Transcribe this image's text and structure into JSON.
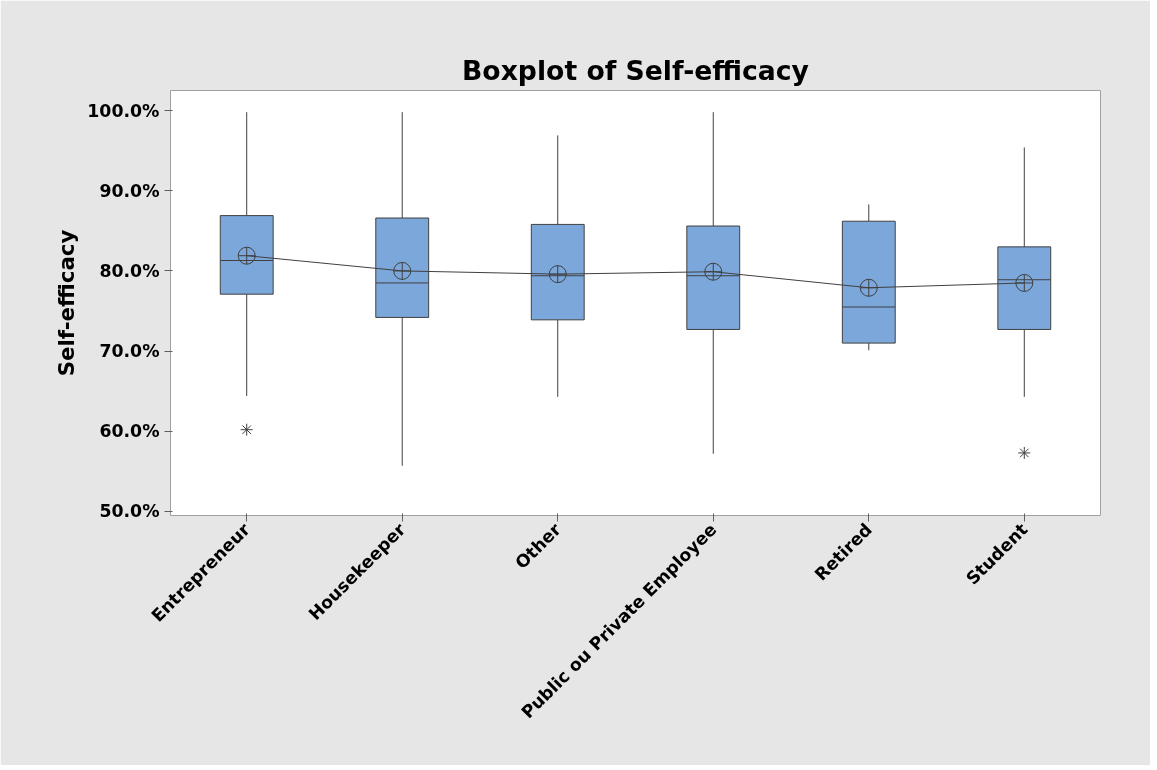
{
  "chart_data": {
    "type": "box",
    "title": "Boxplot of Self-efficacy",
    "ylabel": "Self-efficacy",
    "categories": [
      "Entrepreneur",
      "Housekeeper",
      "Other",
      "Public ou Private Employee",
      "Retired",
      "Student"
    ],
    "ylim": [
      49.5,
      102.5
    ],
    "yticks": [
      {
        "value": 50,
        "label": "50.0%"
      },
      {
        "value": 60,
        "label": "60.0%"
      },
      {
        "value": 70,
        "label": "70.0%"
      },
      {
        "value": 80,
        "label": "80.0%"
      },
      {
        "value": 90,
        "label": "90.0%"
      },
      {
        "value": 100,
        "label": "100.0%"
      }
    ],
    "grid": false,
    "series": [
      {
        "color": "#7ba7db",
        "boxes": [
          {
            "low": 64.4,
            "q1": 77.1,
            "median": 81.3,
            "q3": 86.9,
            "high": 99.8,
            "mean": 81.9,
            "outliers": [
              60.2
            ]
          },
          {
            "low": 55.7,
            "q1": 74.2,
            "median": 78.5,
            "q3": 86.6,
            "high": 99.8,
            "mean": 80.0
          },
          {
            "low": 64.3,
            "q1": 73.9,
            "median": 79.4,
            "q3": 85.8,
            "high": 96.9,
            "mean": 79.6
          },
          {
            "low": 57.2,
            "q1": 72.7,
            "median": 79.4,
            "q3": 85.6,
            "high": 99.8,
            "mean": 79.9
          },
          {
            "low": 70.1,
            "q1": 71.0,
            "median": 75.5,
            "q3": 86.2,
            "high": 88.3,
            "mean": 77.9
          },
          {
            "low": 64.3,
            "q1": 72.7,
            "median": 78.9,
            "q3": 83.0,
            "high": 95.4,
            "mean": 78.5,
            "outliers": [
              57.3
            ]
          }
        ]
      },
      {
        "type": "line",
        "color": "#404040",
        "marker": "none",
        "line_style": "solid",
        "values": [
          81.9,
          80.0,
          79.6,
          79.9,
          77.9,
          78.5
        ]
      }
    ]
  }
}
